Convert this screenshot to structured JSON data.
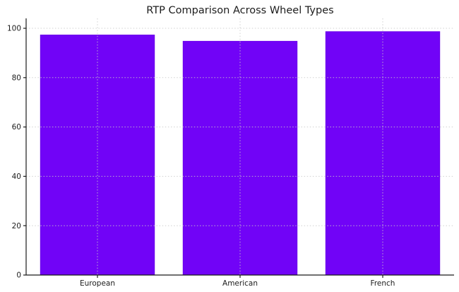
{
  "chart_data": {
    "type": "bar",
    "title": "RTP Comparison Across Wheel Types",
    "categories": [
      "European",
      "American",
      "French"
    ],
    "values": [
      97.3,
      94.74,
      98.65
    ],
    "xlabel": "",
    "ylabel": "",
    "ylim": [
      0,
      104
    ],
    "yticks": [
      0,
      20,
      40,
      60,
      80,
      100
    ],
    "legend": "none",
    "grid": "dotted gridlines at y-ticks and bar centers, drawn over bars",
    "bar_color": "#7103f7",
    "bar_edge_color": "#6a00e8",
    "grid_color": "#c9c9c9",
    "axis_color": "#1a1a1a",
    "text_color": "#1c1c1c",
    "background_color": "#ffffff"
  }
}
